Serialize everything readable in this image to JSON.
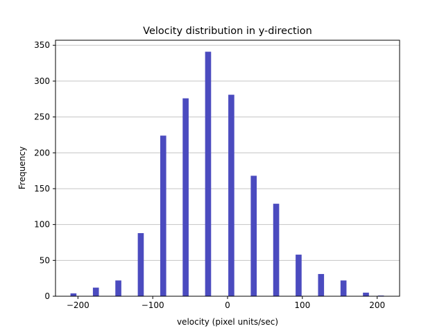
{
  "chart_data": {
    "type": "bar",
    "title": "Velocity distribution in y-direction",
    "xlabel": "velocity (pixel units/sec)",
    "ylabel": "Frequency",
    "xlim": [
      -230,
      230
    ],
    "ylim": [
      0,
      357
    ],
    "x_ticks": [
      -200,
      -100,
      0,
      100,
      200
    ],
    "x_tick_labels": [
      "−200",
      "−100",
      "0",
      "100",
      "200"
    ],
    "y_ticks": [
      0,
      50,
      100,
      150,
      200,
      250,
      300,
      350
    ],
    "y_tick_labels": [
      "0",
      "50",
      "100",
      "150",
      "200",
      "250",
      "300",
      "350"
    ],
    "grid": "y",
    "bar_color": "#4b4bbf",
    "bin_width": 8,
    "bins": [
      {
        "x": -206,
        "value": 4
      },
      {
        "x": -176,
        "value": 12
      },
      {
        "x": -146,
        "value": 22
      },
      {
        "x": -116,
        "value": 88
      },
      {
        "x": -86,
        "value": 224
      },
      {
        "x": -56,
        "value": 276
      },
      {
        "x": -26,
        "value": 341
      },
      {
        "x": 5,
        "value": 281
      },
      {
        "x": 35,
        "value": 168
      },
      {
        "x": 65,
        "value": 129
      },
      {
        "x": 95,
        "value": 58
      },
      {
        "x": 125,
        "value": 31
      },
      {
        "x": 155,
        "value": 22
      },
      {
        "x": 185,
        "value": 5
      },
      {
        "x": 205,
        "value": 1
      }
    ]
  }
}
